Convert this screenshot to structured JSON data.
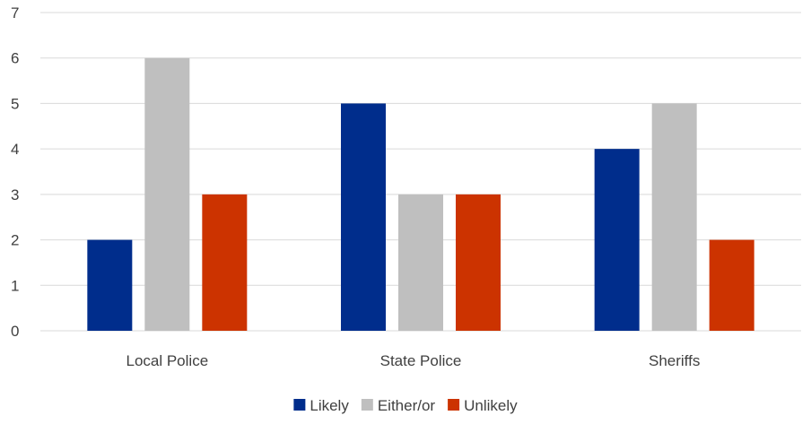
{
  "chart_data": {
    "type": "bar",
    "title": "",
    "xlabel": "",
    "ylabel": "",
    "categories": [
      "Local Police",
      "State Police",
      "Sheriffs"
    ],
    "series": [
      {
        "name": "Likely",
        "color": "#002D8C",
        "values": [
          2,
          5,
          4
        ]
      },
      {
        "name": "Either/or",
        "color": "#BFBFBF",
        "values": [
          6,
          3,
          5
        ]
      },
      {
        "name": "Unlikely",
        "color": "#CC3300",
        "values": [
          3,
          3,
          2
        ]
      }
    ],
    "ylim": [
      0,
      7
    ],
    "yticks": [
      "0",
      "1",
      "2",
      "3",
      "4",
      "5",
      "6",
      "7"
    ],
    "grid": true,
    "gridline_color": "#D9D9D9",
    "legend_position": "bottom"
  }
}
